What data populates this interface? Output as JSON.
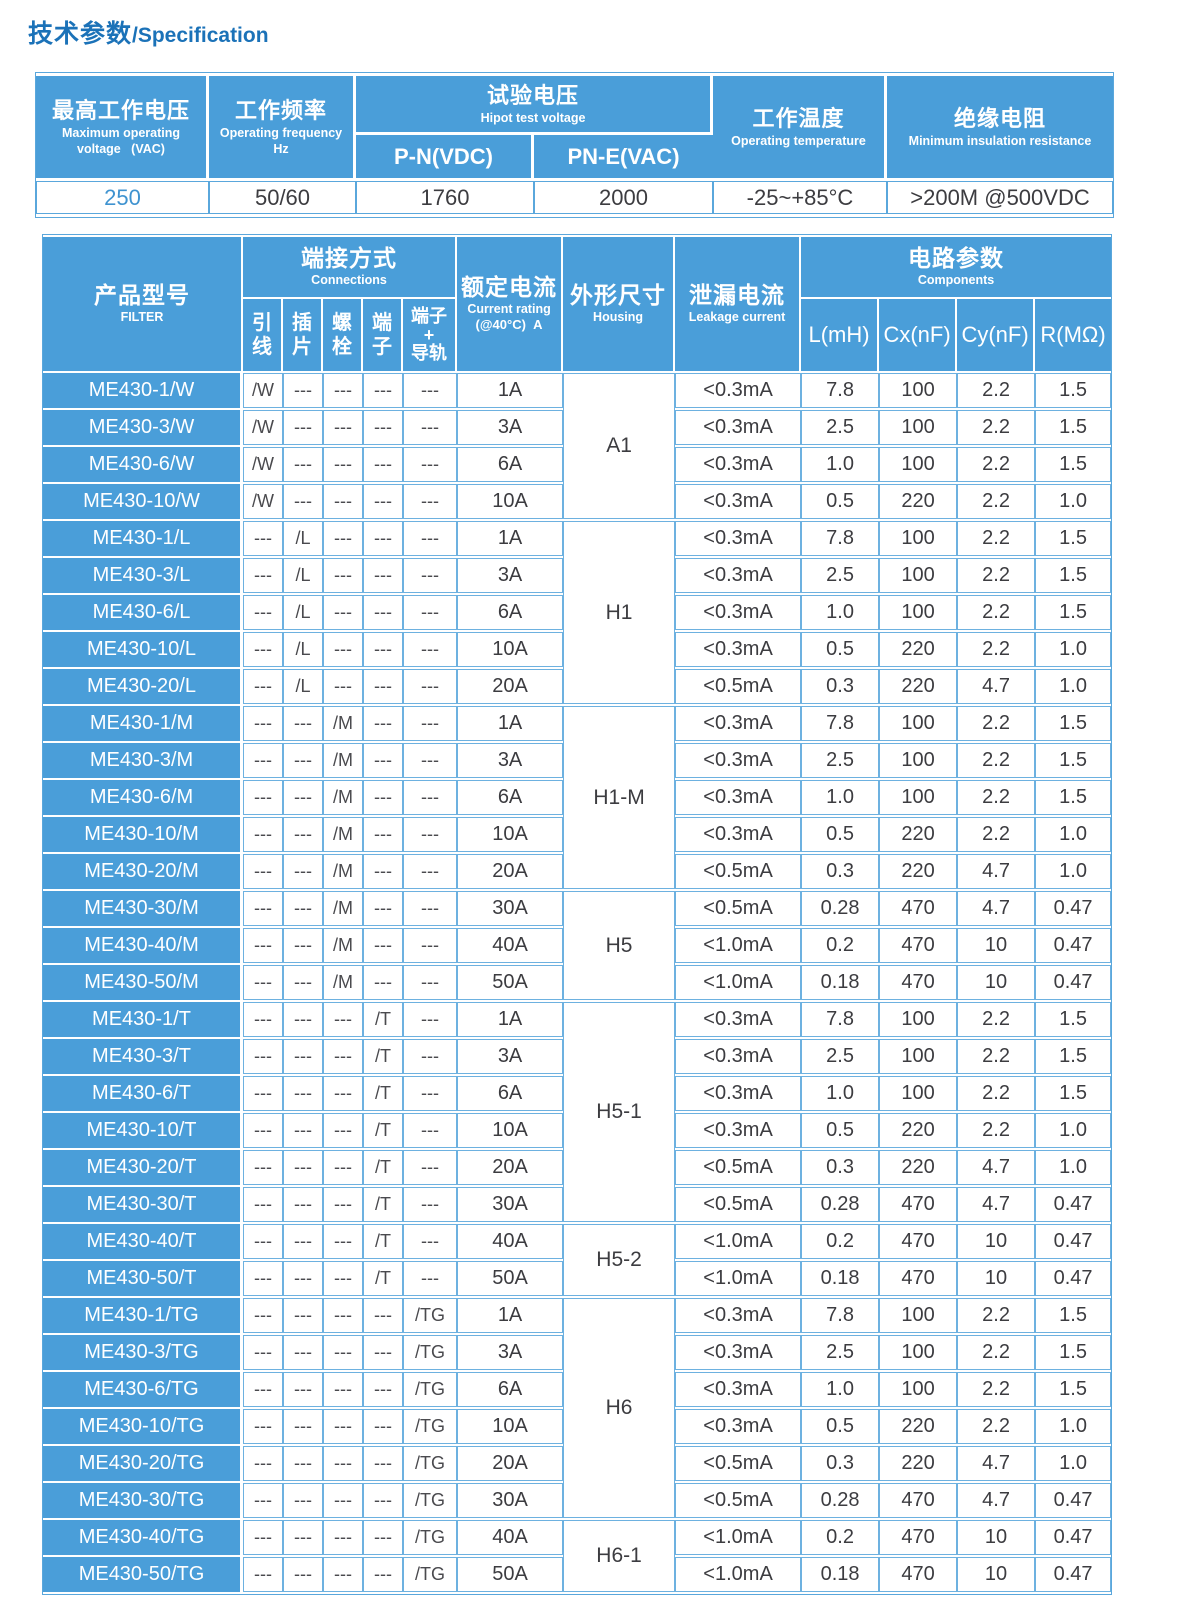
{
  "title": {
    "zh": "技术参数",
    "en": "/Specification"
  },
  "colors": {
    "header_blue": "#4a9ed9",
    "border_blue": "#6db1e0",
    "title_blue": "#1b72b8",
    "accent_value_blue": "#3f93d0",
    "text_dark": "#3c3c40"
  },
  "spec_table": {
    "headers": {
      "max_voltage": {
        "zh": "最高工作电压",
        "en": "Maximum operating\nvoltage   (VAC)"
      },
      "frequency": {
        "zh": "工作频率",
        "en": "Operating frequency\nHz"
      },
      "hipot": {
        "zh": "试验电压",
        "en": "Hipot test voltage",
        "sub1": "P-N(VDC)",
        "sub2": "PN-E(VAC)"
      },
      "temperature": {
        "zh": "工作温度",
        "en": "Operating temperature"
      },
      "insulation": {
        "zh": "绝缘电阻",
        "en": "Minimum insulation resistance"
      }
    },
    "values": {
      "max_voltage": "250",
      "frequency": "50/60",
      "hipot_pn": "1760",
      "hipot_pne": "2000",
      "temperature": "-25~+85°C",
      "insulation": ">200M @500VDC"
    }
  },
  "main_table": {
    "header": {
      "product": {
        "zh": "产品型号",
        "en": "FILTER"
      },
      "connections": {
        "zh": "端接方式",
        "en": "Connections"
      },
      "conn_types": [
        "引\n线",
        "插\n片",
        "螺\n栓",
        "端\n子",
        "端子\n+\n导轨"
      ],
      "current": {
        "zh": "额定电流",
        "en": "Current rating",
        "note": "(@40°C)  A"
      },
      "housing": {
        "zh": "外形尺寸",
        "en": "Housing"
      },
      "leakage": {
        "zh": "泄漏电流",
        "en": "Leakage current"
      },
      "components": {
        "zh": "电路参数",
        "en": "Components",
        "cols": [
          "L(mH)",
          "Cx(nF)",
          "Cy(nF)",
          "R(MΩ)"
        ]
      }
    },
    "groups": [
      {
        "housing": "A1",
        "rows": [
          {
            "model": "ME430-1/W",
            "conn": [
              "/W",
              "---",
              "---",
              "---",
              "---"
            ],
            "current": "1A",
            "leakage": "<0.3mA",
            "l": "7.8",
            "cx": "100",
            "cy": "2.2",
            "r": "1.5"
          },
          {
            "model": "ME430-3/W",
            "conn": [
              "/W",
              "---",
              "---",
              "---",
              "---"
            ],
            "current": "3A",
            "leakage": "<0.3mA",
            "l": "2.5",
            "cx": "100",
            "cy": "2.2",
            "r": "1.5"
          },
          {
            "model": "ME430-6/W",
            "conn": [
              "/W",
              "---",
              "---",
              "---",
              "---"
            ],
            "current": "6A",
            "leakage": "<0.3mA",
            "l": "1.0",
            "cx": "100",
            "cy": "2.2",
            "r": "1.5"
          },
          {
            "model": "ME430-10/W",
            "conn": [
              "/W",
              "---",
              "---",
              "---",
              "---"
            ],
            "current": "10A",
            "leakage": "<0.3mA",
            "l": "0.5",
            "cx": "220",
            "cy": "2.2",
            "r": "1.0"
          }
        ]
      },
      {
        "housing": "H1",
        "rows": [
          {
            "model": "ME430-1/L",
            "conn": [
              "---",
              "/L",
              "---",
              "---",
              "---"
            ],
            "current": "1A",
            "leakage": "<0.3mA",
            "l": "7.8",
            "cx": "100",
            "cy": "2.2",
            "r": "1.5"
          },
          {
            "model": "ME430-3/L",
            "conn": [
              "---",
              "/L",
              "---",
              "---",
              "---"
            ],
            "current": "3A",
            "leakage": "<0.3mA",
            "l": "2.5",
            "cx": "100",
            "cy": "2.2",
            "r": "1.5"
          },
          {
            "model": "ME430-6/L",
            "conn": [
              "---",
              "/L",
              "---",
              "---",
              "---"
            ],
            "current": "6A",
            "leakage": "<0.3mA",
            "l": "1.0",
            "cx": "100",
            "cy": "2.2",
            "r": "1.5"
          },
          {
            "model": "ME430-10/L",
            "conn": [
              "---",
              "/L",
              "---",
              "---",
              "---"
            ],
            "current": "10A",
            "leakage": "<0.3mA",
            "l": "0.5",
            "cx": "220",
            "cy": "2.2",
            "r": "1.0"
          },
          {
            "model": "ME430-20/L",
            "conn": [
              "---",
              "/L",
              "---",
              "---",
              "---"
            ],
            "current": "20A",
            "leakage": "<0.5mA",
            "l": "0.3",
            "cx": "220",
            "cy": "4.7",
            "r": "1.0"
          }
        ]
      },
      {
        "housing": "H1-M",
        "rows": [
          {
            "model": "ME430-1/M",
            "conn": [
              "---",
              "---",
              "/M",
              "---",
              "---"
            ],
            "current": "1A",
            "leakage": "<0.3mA",
            "l": "7.8",
            "cx": "100",
            "cy": "2.2",
            "r": "1.5"
          },
          {
            "model": "ME430-3/M",
            "conn": [
              "---",
              "---",
              "/M",
              "---",
              "---"
            ],
            "current": "3A",
            "leakage": "<0.3mA",
            "l": "2.5",
            "cx": "100",
            "cy": "2.2",
            "r": "1.5"
          },
          {
            "model": "ME430-6/M",
            "conn": [
              "---",
              "---",
              "/M",
              "---",
              "---"
            ],
            "current": "6A",
            "leakage": "<0.3mA",
            "l": "1.0",
            "cx": "100",
            "cy": "2.2",
            "r": "1.5"
          },
          {
            "model": "ME430-10/M",
            "conn": [
              "---",
              "---",
              "/M",
              "---",
              "---"
            ],
            "current": "10A",
            "leakage": "<0.3mA",
            "l": "0.5",
            "cx": "220",
            "cy": "2.2",
            "r": "1.0"
          },
          {
            "model": "ME430-20/M",
            "conn": [
              "---",
              "---",
              "/M",
              "---",
              "---"
            ],
            "current": "20A",
            "leakage": "<0.5mA",
            "l": "0.3",
            "cx": "220",
            "cy": "4.7",
            "r": "1.0"
          }
        ]
      },
      {
        "housing": "H5",
        "rows": [
          {
            "model": "ME430-30/M",
            "conn": [
              "---",
              "---",
              "/M",
              "---",
              "---"
            ],
            "current": "30A",
            "leakage": "<0.5mA",
            "l": "0.28",
            "cx": "470",
            "cy": "4.7",
            "r": "0.47"
          },
          {
            "model": "ME430-40/M",
            "conn": [
              "---",
              "---",
              "/M",
              "---",
              "---"
            ],
            "current": "40A",
            "leakage": "<1.0mA",
            "l": "0.2",
            "cx": "470",
            "cy": "10",
            "r": "0.47"
          },
          {
            "model": "ME430-50/M",
            "conn": [
              "---",
              "---",
              "/M",
              "---",
              "---"
            ],
            "current": "50A",
            "leakage": "<1.0mA",
            "l": "0.18",
            "cx": "470",
            "cy": "10",
            "r": "0.47"
          }
        ]
      },
      {
        "housing": "H5-1",
        "rows": [
          {
            "model": "ME430-1/T",
            "conn": [
              "---",
              "---",
              "---",
              "/T",
              "---"
            ],
            "current": "1A",
            "leakage": "<0.3mA",
            "l": "7.8",
            "cx": "100",
            "cy": "2.2",
            "r": "1.5"
          },
          {
            "model": "ME430-3/T",
            "conn": [
              "---",
              "---",
              "---",
              "/T",
              "---"
            ],
            "current": "3A",
            "leakage": "<0.3mA",
            "l": "2.5",
            "cx": "100",
            "cy": "2.2",
            "r": "1.5"
          },
          {
            "model": "ME430-6/T",
            "conn": [
              "---",
              "---",
              "---",
              "/T",
              "---"
            ],
            "current": "6A",
            "leakage": "<0.3mA",
            "l": "1.0",
            "cx": "100",
            "cy": "2.2",
            "r": "1.5"
          },
          {
            "model": "ME430-10/T",
            "conn": [
              "---",
              "---",
              "---",
              "/T",
              "---"
            ],
            "current": "10A",
            "leakage": "<0.3mA",
            "l": "0.5",
            "cx": "220",
            "cy": "2.2",
            "r": "1.0"
          },
          {
            "model": "ME430-20/T",
            "conn": [
              "---",
              "---",
              "---",
              "/T",
              "---"
            ],
            "current": "20A",
            "leakage": "<0.5mA",
            "l": "0.3",
            "cx": "220",
            "cy": "4.7",
            "r": "1.0"
          },
          {
            "model": "ME430-30/T",
            "conn": [
              "---",
              "---",
              "---",
              "/T",
              "---"
            ],
            "current": "30A",
            "leakage": "<0.5mA",
            "l": "0.28",
            "cx": "470",
            "cy": "4.7",
            "r": "0.47"
          }
        ]
      },
      {
        "housing": "H5-2",
        "rows": [
          {
            "model": "ME430-40/T",
            "conn": [
              "---",
              "---",
              "---",
              "/T",
              "---"
            ],
            "current": "40A",
            "leakage": "<1.0mA",
            "l": "0.2",
            "cx": "470",
            "cy": "10",
            "r": "0.47"
          },
          {
            "model": "ME430-50/T",
            "conn": [
              "---",
              "---",
              "---",
              "/T",
              "---"
            ],
            "current": "50A",
            "leakage": "<1.0mA",
            "l": "0.18",
            "cx": "470",
            "cy": "10",
            "r": "0.47"
          }
        ]
      },
      {
        "housing": "H6",
        "rows": [
          {
            "model": "ME430-1/TG",
            "conn": [
              "---",
              "---",
              "---",
              "---",
              "/TG"
            ],
            "current": "1A",
            "leakage": "<0.3mA",
            "l": "7.8",
            "cx": "100",
            "cy": "2.2",
            "r": "1.5"
          },
          {
            "model": "ME430-3/TG",
            "conn": [
              "---",
              "---",
              "---",
              "---",
              "/TG"
            ],
            "current": "3A",
            "leakage": "<0.3mA",
            "l": "2.5",
            "cx": "100",
            "cy": "2.2",
            "r": "1.5"
          },
          {
            "model": "ME430-6/TG",
            "conn": [
              "---",
              "---",
              "---",
              "---",
              "/TG"
            ],
            "current": "6A",
            "leakage": "<0.3mA",
            "l": "1.0",
            "cx": "100",
            "cy": "2.2",
            "r": "1.5"
          },
          {
            "model": "ME430-10/TG",
            "conn": [
              "---",
              "---",
              "---",
              "---",
              "/TG"
            ],
            "current": "10A",
            "leakage": "<0.3mA",
            "l": "0.5",
            "cx": "220",
            "cy": "2.2",
            "r": "1.0"
          },
          {
            "model": "ME430-20/TG",
            "conn": [
              "---",
              "---",
              "---",
              "---",
              "/TG"
            ],
            "current": "20A",
            "leakage": "<0.5mA",
            "l": "0.3",
            "cx": "220",
            "cy": "4.7",
            "r": "1.0"
          },
          {
            "model": "ME430-30/TG",
            "conn": [
              "---",
              "---",
              "---",
              "---",
              "/TG"
            ],
            "current": "30A",
            "leakage": "<0.5mA",
            "l": "0.28",
            "cx": "470",
            "cy": "4.7",
            "r": "0.47"
          }
        ]
      },
      {
        "housing": "H6-1",
        "rows": [
          {
            "model": "ME430-40/TG",
            "conn": [
              "---",
              "---",
              "---",
              "---",
              "/TG"
            ],
            "current": "40A",
            "leakage": "<1.0mA",
            "l": "0.2",
            "cx": "470",
            "cy": "10",
            "r": "0.47"
          },
          {
            "model": "ME430-50/TG",
            "conn": [
              "---",
              "---",
              "---",
              "---",
              "/TG"
            ],
            "current": "50A",
            "leakage": "<1.0mA",
            "l": "0.18",
            "cx": "470",
            "cy": "10",
            "r": "0.47"
          }
        ]
      }
    ]
  }
}
